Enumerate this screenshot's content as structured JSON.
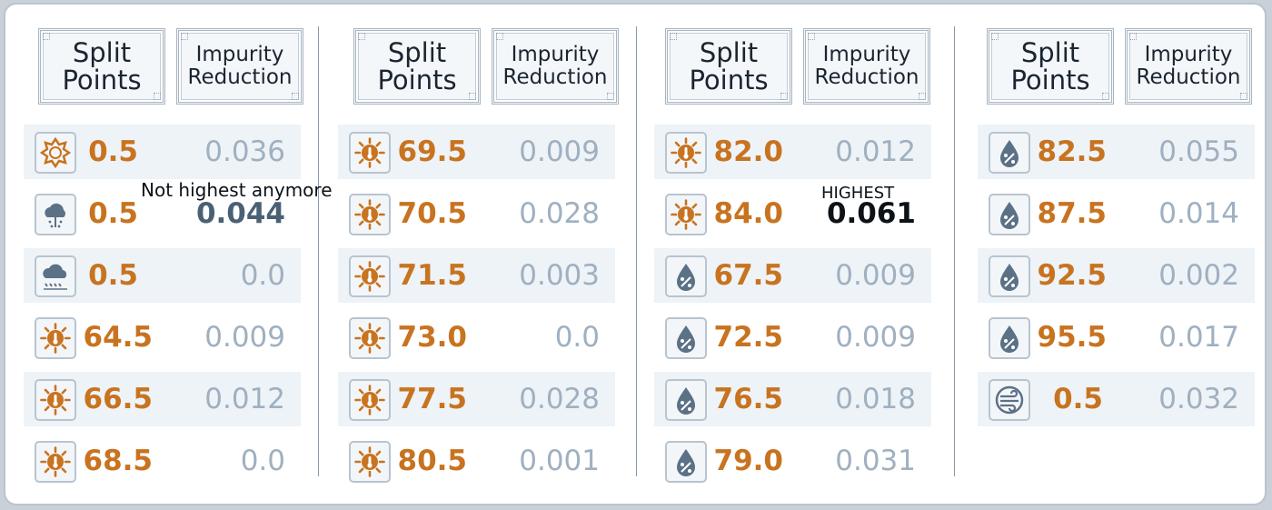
{
  "headers": {
    "split": [
      "Split",
      "Points"
    ],
    "impurity": [
      "Impurity",
      "Reduction"
    ]
  },
  "columns": [
    {
      "rows": [
        {
          "icon": "sun-outline-icon",
          "split": "0.5",
          "impurity": "0.036",
          "style": "normal"
        },
        {
          "icon": "cloud-rain-icon",
          "split": "0.5",
          "impurity": "0.044",
          "style": "emph"
        },
        {
          "icon": "cloud-drizzle-icon",
          "split": "0.5",
          "impurity": "0.0",
          "style": "normal"
        },
        {
          "icon": "thermometer-sun-icon",
          "split": "64.5",
          "impurity": "0.009",
          "style": "normal"
        },
        {
          "icon": "thermometer-sun-icon",
          "split": "66.5",
          "impurity": "0.012",
          "style": "normal"
        },
        {
          "icon": "thermometer-sun-icon",
          "split": "68.5",
          "impurity": "0.0",
          "style": "normal"
        }
      ]
    },
    {
      "rows": [
        {
          "icon": "thermometer-sun-icon",
          "split": "69.5",
          "impurity": "0.009",
          "style": "normal"
        },
        {
          "icon": "thermometer-sun-icon",
          "split": "70.5",
          "impurity": "0.028",
          "style": "normal"
        },
        {
          "icon": "thermometer-sun-icon",
          "split": "71.5",
          "impurity": "0.003",
          "style": "normal"
        },
        {
          "icon": "thermometer-sun-icon",
          "split": "73.0",
          "impurity": "0.0",
          "style": "normal"
        },
        {
          "icon": "thermometer-sun-icon",
          "split": "77.5",
          "impurity": "0.028",
          "style": "normal"
        },
        {
          "icon": "thermometer-sun-icon",
          "split": "80.5",
          "impurity": "0.001",
          "style": "normal"
        }
      ]
    },
    {
      "rows": [
        {
          "icon": "thermometer-sun-icon",
          "split": "82.0",
          "impurity": "0.012",
          "style": "normal"
        },
        {
          "icon": "thermometer-sun-icon",
          "split": "84.0",
          "impurity": "0.061",
          "style": "best"
        },
        {
          "icon": "humidity-drop-icon",
          "split": "67.5",
          "impurity": "0.009",
          "style": "normal"
        },
        {
          "icon": "humidity-drop-icon",
          "split": "72.5",
          "impurity": "0.009",
          "style": "normal"
        },
        {
          "icon": "humidity-drop-icon",
          "split": "76.5",
          "impurity": "0.018",
          "style": "normal"
        },
        {
          "icon": "humidity-drop-icon",
          "split": "79.0",
          "impurity": "0.031",
          "style": "normal"
        }
      ]
    },
    {
      "rows": [
        {
          "icon": "humidity-drop-icon",
          "split": "82.5",
          "impurity": "0.055",
          "style": "normal"
        },
        {
          "icon": "humidity-drop-icon",
          "split": "87.5",
          "impurity": "0.014",
          "style": "normal"
        },
        {
          "icon": "humidity-drop-icon",
          "split": "92.5",
          "impurity": "0.002",
          "style": "normal"
        },
        {
          "icon": "humidity-drop-icon",
          "split": "95.5",
          "impurity": "0.017",
          "style": "normal"
        },
        {
          "icon": "wind-icon",
          "split": "0.5",
          "impurity": "0.032",
          "style": "normal"
        }
      ]
    }
  ],
  "annotations": {
    "not_highest": "Not highest anymore",
    "highest": "HIGHEST"
  },
  "colors": {
    "split": "#c8731f",
    "impurity": "#9fb0c0",
    "best": "#0d1217"
  }
}
